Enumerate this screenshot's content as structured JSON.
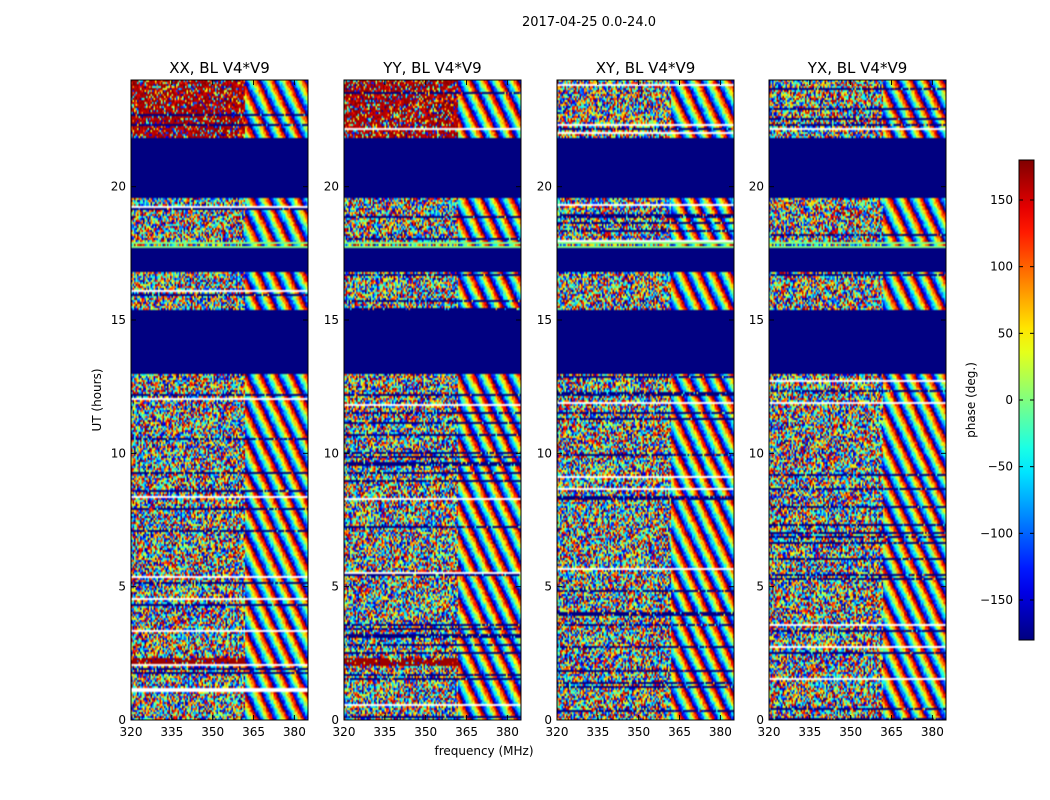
{
  "chart_data": {
    "type": "heatmap",
    "suptitle": "2017-04-25 0.0-24.0",
    "xlabel": "frequency (MHz)",
    "ylabel": "UT (hours)",
    "xlim": [
      320,
      385
    ],
    "ylim": [
      0,
      24
    ],
    "xticks": [
      320,
      335,
      350,
      365,
      380
    ],
    "yticks": [
      0,
      5,
      10,
      15,
      20
    ],
    "panels": [
      {
        "title": "XX, BL V4*V9",
        "id": "xx"
      },
      {
        "title": "YY, BL V4*V9",
        "id": "yy"
      },
      {
        "title": "XY, BL V4*V9",
        "id": "xy"
      },
      {
        "title": "YX, BL V4*V9",
        "id": "yx"
      }
    ],
    "colorbar": {
      "label": "phase (deg.)",
      "range": [
        -180,
        180
      ],
      "ticks": [
        -150,
        -100,
        -50,
        0,
        50,
        100,
        150
      ],
      "tick_labels": [
        "−150",
        "−100",
        "−50",
        "0",
        "50",
        "100",
        "150"
      ],
      "colormap": "jet"
    },
    "flagged_bands_hours": [
      [
        13.0,
        15.4
      ],
      [
        16.8,
        17.8
      ],
      [
        19.6,
        21.8
      ]
    ],
    "flag_value_deg": -180,
    "coherent_band_freq_mhz": 362
  }
}
